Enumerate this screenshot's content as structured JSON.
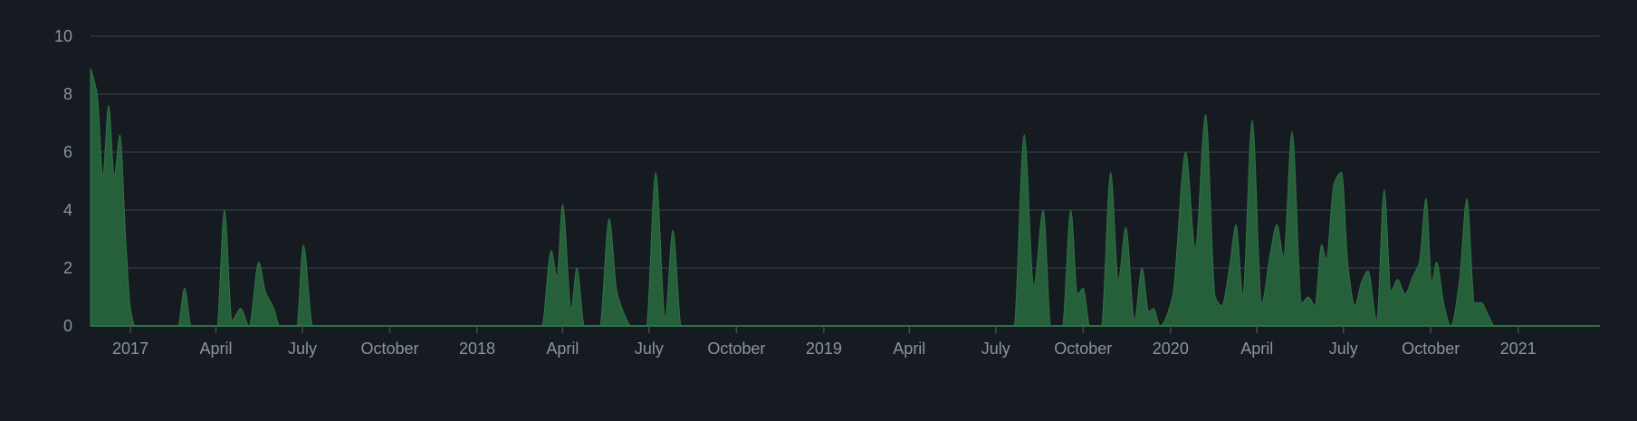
{
  "chart_data": {
    "type": "area",
    "title": "",
    "xlabel": "",
    "ylabel": "",
    "ylim": [
      0,
      10
    ],
    "y_ticks": [
      0,
      2,
      4,
      6,
      8,
      10
    ],
    "x_range": [
      "2016-11-20",
      "2021-03-28"
    ],
    "x_ticks": [
      {
        "date": "2017-01-01",
        "label": "2017"
      },
      {
        "date": "2017-04-01",
        "label": "April"
      },
      {
        "date": "2017-07-01",
        "label": "July"
      },
      {
        "date": "2017-10-01",
        "label": "October"
      },
      {
        "date": "2018-01-01",
        "label": "2018"
      },
      {
        "date": "2018-04-01",
        "label": "April"
      },
      {
        "date": "2018-07-01",
        "label": "July"
      },
      {
        "date": "2018-10-01",
        "label": "October"
      },
      {
        "date": "2019-01-01",
        "label": "2019"
      },
      {
        "date": "2019-04-01",
        "label": "April"
      },
      {
        "date": "2019-07-01",
        "label": "July"
      },
      {
        "date": "2019-10-01",
        "label": "October"
      },
      {
        "date": "2020-01-01",
        "label": "2020"
      },
      {
        "date": "2020-04-01",
        "label": "April"
      },
      {
        "date": "2020-07-01",
        "label": "July"
      },
      {
        "date": "2020-10-01",
        "label": "October"
      },
      {
        "date": "2021-01-01",
        "label": "2021"
      }
    ],
    "grid": true,
    "series": [
      {
        "color": "#26603a",
        "points": [
          [
            "2016-11-20",
            8.9
          ],
          [
            "2016-11-27",
            8.0
          ],
          [
            "2016-12-03",
            5.2
          ],
          [
            "2016-12-09",
            7.6
          ],
          [
            "2016-12-15",
            5.2
          ],
          [
            "2016-12-21",
            6.6
          ],
          [
            "2016-12-27",
            3.0
          ],
          [
            "2017-01-01",
            0.6
          ],
          [
            "2017-01-06",
            0
          ],
          [
            "2017-02-20",
            0
          ],
          [
            "2017-02-27",
            1.3
          ],
          [
            "2017-03-06",
            0
          ],
          [
            "2017-04-02",
            0
          ],
          [
            "2017-04-10",
            4.0
          ],
          [
            "2017-04-18",
            0.2
          ],
          [
            "2017-04-27",
            0.6
          ],
          [
            "2017-05-06",
            0
          ],
          [
            "2017-05-16",
            2.2
          ],
          [
            "2017-05-23",
            1.2
          ],
          [
            "2017-06-01",
            0.6
          ],
          [
            "2017-06-07",
            0
          ],
          [
            "2017-06-25",
            0
          ],
          [
            "2017-07-02",
            2.8
          ],
          [
            "2017-07-12",
            0
          ],
          [
            "2018-03-10",
            0
          ],
          [
            "2018-03-20",
            2.6
          ],
          [
            "2018-03-26",
            1.7
          ],
          [
            "2018-04-01",
            4.2
          ],
          [
            "2018-04-10",
            0.6
          ],
          [
            "2018-04-16",
            2.0
          ],
          [
            "2018-04-24",
            0
          ],
          [
            "2018-05-10",
            0
          ],
          [
            "2018-05-20",
            3.7
          ],
          [
            "2018-05-28",
            1.2
          ],
          [
            "2018-06-05",
            0.4
          ],
          [
            "2018-06-12",
            0
          ],
          [
            "2018-06-28",
            0
          ],
          [
            "2018-07-08",
            5.3
          ],
          [
            "2018-07-18",
            0.3
          ],
          [
            "2018-07-26",
            3.3
          ],
          [
            "2018-08-04",
            0
          ],
          [
            "2019-07-20",
            0
          ],
          [
            "2019-07-31",
            6.6
          ],
          [
            "2019-08-10",
            1.4
          ],
          [
            "2019-08-20",
            4.0
          ],
          [
            "2019-08-28",
            0
          ],
          [
            "2019-09-09",
            0
          ],
          [
            "2019-09-18",
            4.0
          ],
          [
            "2019-09-25",
            1.1
          ],
          [
            "2019-10-01",
            1.3
          ],
          [
            "2019-10-08",
            0
          ],
          [
            "2019-10-20",
            0
          ],
          [
            "2019-10-30",
            5.3
          ],
          [
            "2019-11-07",
            1.6
          ],
          [
            "2019-11-15",
            3.4
          ],
          [
            "2019-11-24",
            0.2
          ],
          [
            "2019-12-02",
            2.0
          ],
          [
            "2019-12-09",
            0.5
          ],
          [
            "2019-12-14",
            0.6
          ],
          [
            "2019-12-21",
            0
          ],
          [
            "2020-01-03",
            1.0
          ],
          [
            "2020-01-17",
            6.0
          ],
          [
            "2020-01-27",
            2.7
          ],
          [
            "2020-02-07",
            7.3
          ],
          [
            "2020-02-17",
            1.0
          ],
          [
            "2020-02-24",
            0.7
          ],
          [
            "2020-03-03",
            2.0
          ],
          [
            "2020-03-10",
            3.5
          ],
          [
            "2020-03-17",
            1.1
          ],
          [
            "2020-03-27",
            7.1
          ],
          [
            "2020-04-06",
            0.8
          ],
          [
            "2020-04-15",
            2.5
          ],
          [
            "2020-04-22",
            3.5
          ],
          [
            "2020-04-29",
            2.4
          ],
          [
            "2020-05-08",
            6.7
          ],
          [
            "2020-05-18",
            0.8
          ],
          [
            "2020-05-25",
            1.0
          ],
          [
            "2020-06-01",
            0.7
          ],
          [
            "2020-06-08",
            2.8
          ],
          [
            "2020-06-13",
            2.3
          ],
          [
            "2020-06-21",
            4.9
          ],
          [
            "2020-06-29",
            5.3
          ],
          [
            "2020-07-06",
            2.0
          ],
          [
            "2020-07-13",
            0.7
          ],
          [
            "2020-07-20",
            1.5
          ],
          [
            "2020-07-27",
            1.9
          ],
          [
            "2020-08-05",
            0.2
          ],
          [
            "2020-08-13",
            4.7
          ],
          [
            "2020-08-20",
            1.2
          ],
          [
            "2020-08-27",
            1.6
          ],
          [
            "2020-09-04",
            1.1
          ],
          [
            "2020-09-12",
            1.7
          ],
          [
            "2020-09-19",
            2.2
          ],
          [
            "2020-09-26",
            4.4
          ],
          [
            "2020-10-02",
            1.5
          ],
          [
            "2020-10-07",
            2.2
          ],
          [
            "2020-10-15",
            0.7
          ],
          [
            "2020-10-22",
            0
          ],
          [
            "2020-10-31",
            1.5
          ],
          [
            "2020-11-08",
            4.4
          ],
          [
            "2020-11-16",
            0.8
          ],
          [
            "2020-11-23",
            0.8
          ],
          [
            "2020-11-30",
            0.4
          ],
          [
            "2020-12-06",
            0
          ]
        ]
      }
    ]
  }
}
